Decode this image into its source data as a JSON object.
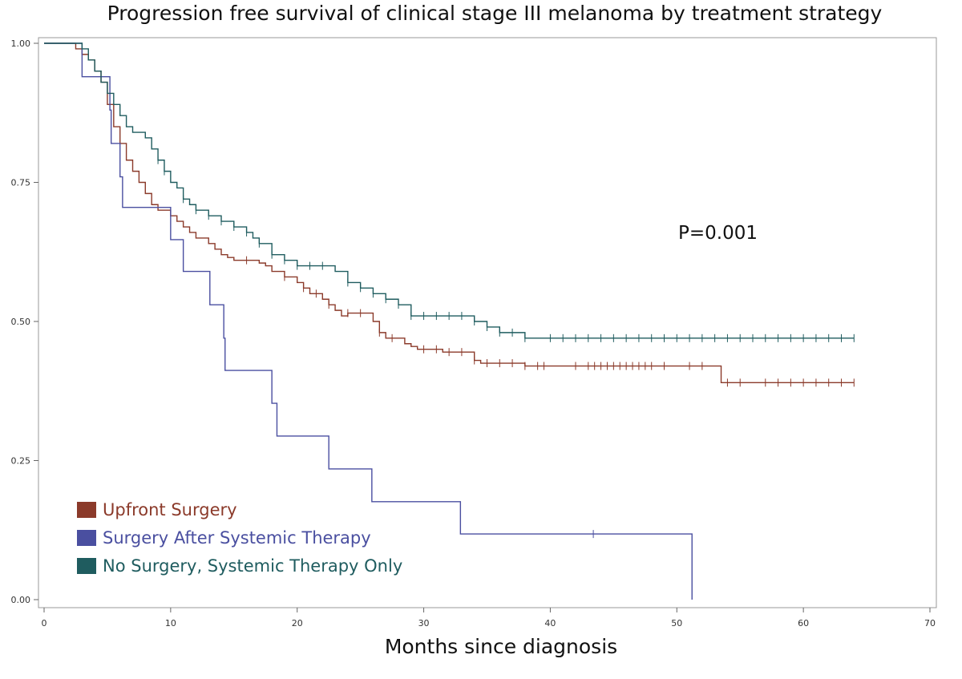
{
  "chart_data": {
    "type": "line",
    "title": "Progression free survival of clinical stage III melanoma by treatment strategy",
    "xlabel": "Months since diagnosis",
    "ylabel": "",
    "xlim": [
      0,
      70
    ],
    "ylim": [
      0,
      1
    ],
    "x_ticks": [
      "0",
      "10",
      "20",
      "30",
      "40",
      "50",
      "60",
      "70"
    ],
    "y_ticks": [
      "0.00",
      "0.25",
      "0.50",
      "0.75",
      "1.00"
    ],
    "grid": false,
    "legend_placement": "bottom-left",
    "annotation": "P=0.001",
    "series": [
      {
        "name": "Upfront Surgery",
        "color": "#8B3A2A",
        "steps": [
          [
            0,
            1.0
          ],
          [
            2.5,
            0.99
          ],
          [
            3.0,
            0.98
          ],
          [
            3.5,
            0.97
          ],
          [
            4.0,
            0.95
          ],
          [
            4.5,
            0.93
          ],
          [
            5.0,
            0.89
          ],
          [
            5.5,
            0.85
          ],
          [
            6.0,
            0.82
          ],
          [
            6.5,
            0.79
          ],
          [
            7.0,
            0.77
          ],
          [
            7.5,
            0.75
          ],
          [
            8.0,
            0.73
          ],
          [
            8.5,
            0.71
          ],
          [
            9.0,
            0.7
          ],
          [
            10.0,
            0.69
          ],
          [
            10.5,
            0.68
          ],
          [
            11.0,
            0.67
          ],
          [
            11.5,
            0.66
          ],
          [
            12.0,
            0.65
          ],
          [
            13.0,
            0.64
          ],
          [
            13.5,
            0.63
          ],
          [
            14.0,
            0.62
          ],
          [
            14.5,
            0.615
          ],
          [
            15.0,
            0.61
          ],
          [
            17.0,
            0.605
          ],
          [
            17.5,
            0.6
          ],
          [
            18.0,
            0.59
          ],
          [
            19.0,
            0.58
          ],
          [
            20.0,
            0.57
          ],
          [
            20.5,
            0.56
          ],
          [
            21.0,
            0.55
          ],
          [
            22.0,
            0.54
          ],
          [
            22.5,
            0.53
          ],
          [
            23.0,
            0.52
          ],
          [
            23.5,
            0.51
          ],
          [
            24.0,
            0.515
          ],
          [
            26.0,
            0.5
          ],
          [
            26.5,
            0.48
          ],
          [
            27.0,
            0.47
          ],
          [
            28.5,
            0.46
          ],
          [
            29.0,
            0.455
          ],
          [
            29.5,
            0.45
          ],
          [
            31.5,
            0.445
          ],
          [
            34.0,
            0.43
          ],
          [
            34.5,
            0.425
          ],
          [
            38.0,
            0.42
          ],
          [
            53.5,
            0.39
          ],
          [
            64.0,
            0.39
          ]
        ],
        "censor_x": [
          16,
          19,
          20.5,
          21.5,
          22.5,
          24,
          25,
          26.5,
          27.5,
          30,
          31,
          32,
          33,
          34,
          35,
          36,
          37,
          38,
          39,
          39.5,
          42,
          43,
          43.5,
          44,
          44.5,
          45,
          45.5,
          46,
          46.5,
          47,
          47.5,
          48,
          49,
          51,
          52,
          54,
          55,
          57,
          58,
          59,
          60,
          61,
          62,
          63,
          64
        ]
      },
      {
        "name": "Surgery After Systemic Therapy",
        "color": "#4A4FA0",
        "steps": [
          [
            0,
            1.0
          ],
          [
            3.0,
            0.94
          ],
          [
            5.2,
            0.88
          ],
          [
            5.3,
            0.82
          ],
          [
            6.0,
            0.76
          ],
          [
            6.2,
            0.705
          ],
          [
            10.0,
            0.705
          ],
          [
            10.0,
            0.647
          ],
          [
            11.0,
            0.59
          ],
          [
            13.1,
            0.53
          ],
          [
            14.2,
            0.47
          ],
          [
            14.3,
            0.412
          ],
          [
            18.0,
            0.353
          ],
          [
            18.4,
            0.294
          ],
          [
            22.5,
            0.235
          ],
          [
            25.9,
            0.176
          ],
          [
            32.9,
            0.118
          ],
          [
            51.2,
            0.0
          ]
        ],
        "censor_x": [
          43.4
        ]
      },
      {
        "name": "No Surgery, Systemic Therapy Only",
        "color": "#1F5C5F",
        "steps": [
          [
            0,
            1.0
          ],
          [
            3.0,
            0.99
          ],
          [
            3.5,
            0.97
          ],
          [
            4.0,
            0.95
          ],
          [
            4.5,
            0.93
          ],
          [
            5.0,
            0.91
          ],
          [
            5.5,
            0.89
          ],
          [
            6.0,
            0.87
          ],
          [
            6.5,
            0.85
          ],
          [
            7.0,
            0.84
          ],
          [
            8.0,
            0.83
          ],
          [
            8.5,
            0.81
          ],
          [
            9.0,
            0.79
          ],
          [
            9.5,
            0.77
          ],
          [
            10.0,
            0.75
          ],
          [
            10.5,
            0.74
          ],
          [
            11.0,
            0.72
          ],
          [
            11.5,
            0.71
          ],
          [
            12.0,
            0.7
          ],
          [
            13.0,
            0.69
          ],
          [
            14.0,
            0.68
          ],
          [
            15.0,
            0.67
          ],
          [
            16.0,
            0.66
          ],
          [
            16.5,
            0.65
          ],
          [
            17.0,
            0.64
          ],
          [
            18.0,
            0.62
          ],
          [
            19.0,
            0.61
          ],
          [
            20.0,
            0.6
          ],
          [
            23.0,
            0.59
          ],
          [
            24.0,
            0.57
          ],
          [
            25.0,
            0.56
          ],
          [
            26.0,
            0.55
          ],
          [
            27.0,
            0.54
          ],
          [
            28.0,
            0.53
          ],
          [
            29.0,
            0.51
          ],
          [
            34.0,
            0.5
          ],
          [
            35.0,
            0.49
          ],
          [
            36.0,
            0.48
          ],
          [
            38.0,
            0.47
          ],
          [
            64.0,
            0.47
          ]
        ],
        "censor_x": [
          9,
          9.5,
          11,
          12,
          13,
          14,
          15,
          16,
          17,
          18,
          19,
          20,
          21,
          22,
          24,
          25,
          26,
          27,
          28,
          29,
          30,
          31,
          32,
          33,
          34,
          35,
          36,
          37,
          38,
          40,
          41,
          42,
          43,
          44,
          45,
          46,
          47,
          48,
          49,
          50,
          51,
          52,
          53,
          54,
          55,
          56,
          57,
          58,
          59,
          60,
          61,
          62,
          63,
          64
        ]
      }
    ]
  }
}
